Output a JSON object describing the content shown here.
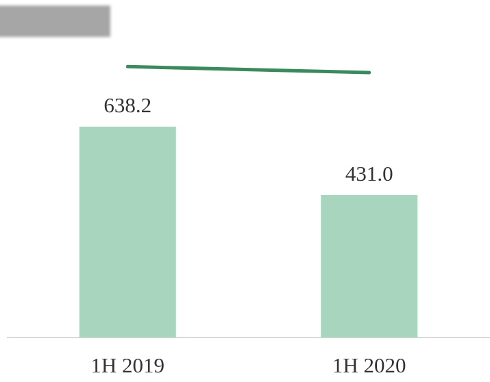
{
  "chart_data": {
    "type": "bar",
    "categories": [
      "1H 2019",
      "1H 2020"
    ],
    "series": [
      {
        "type": "bar",
        "color": "#a8d5bd",
        "values": [
          638.2,
          431.0
        ],
        "value_labels": [
          "638.2",
          "431.0"
        ]
      },
      {
        "type": "line",
        "color": "#3b8a5e",
        "values": [
          820,
          802
        ]
      }
    ],
    "ylim": [
      0,
      1000
    ]
  }
}
